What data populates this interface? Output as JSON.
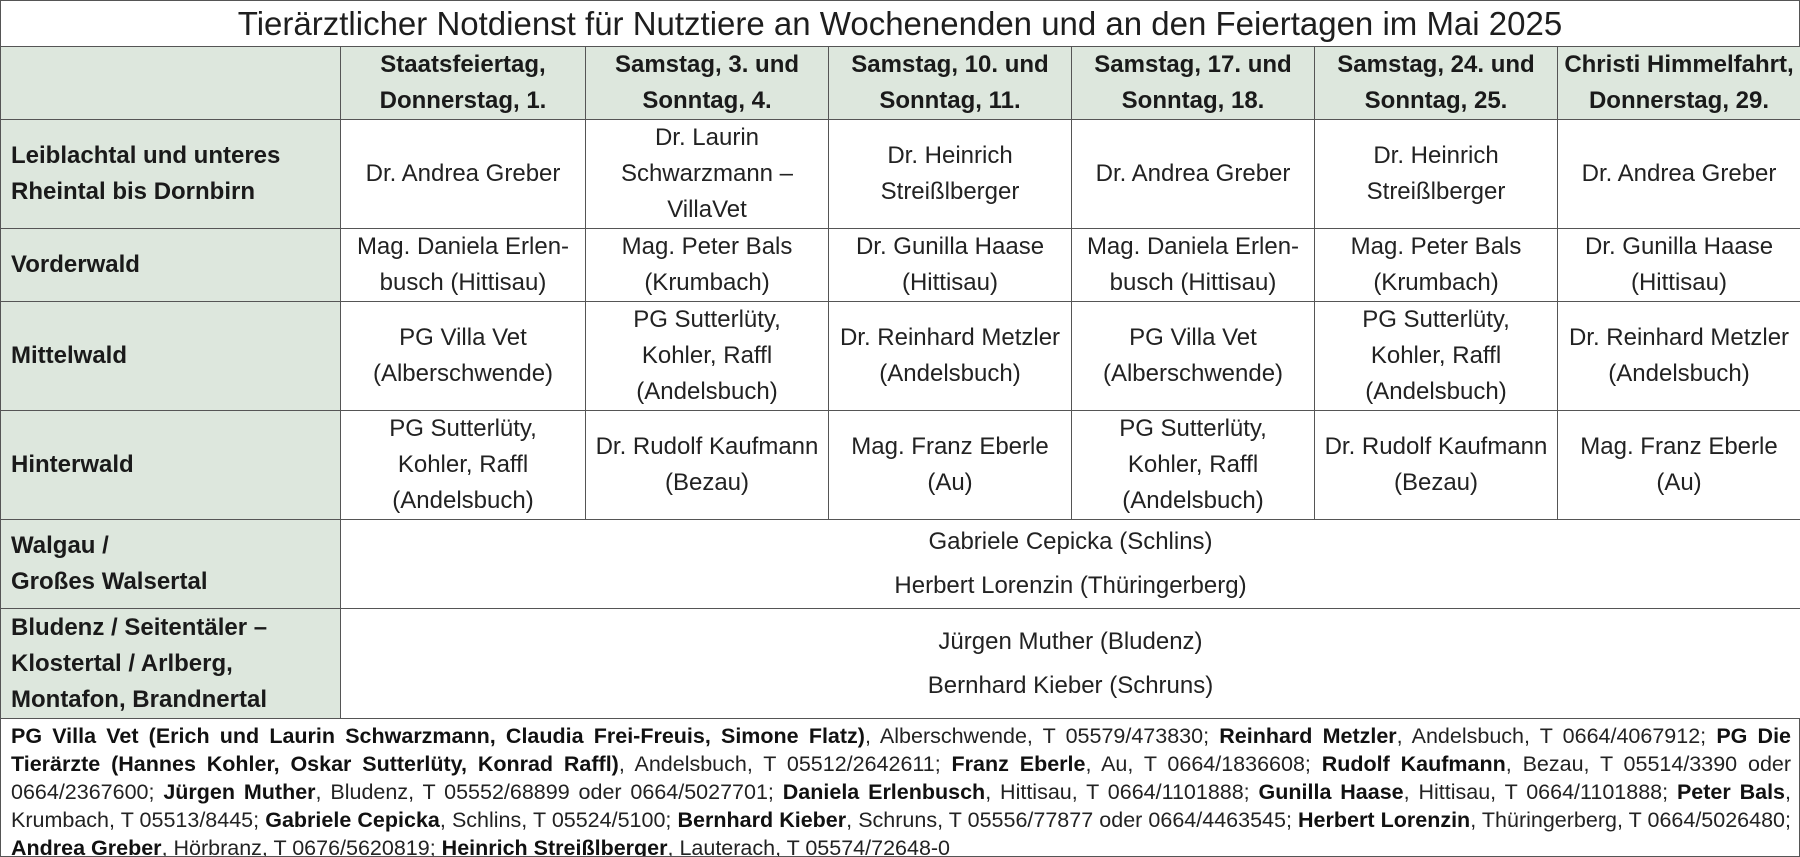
{
  "title": "Tierärztlicher Notdienst für Nutztiere an Wochenenden und an den Feiertagen im Mai 2025",
  "header": {
    "corner": "",
    "columns": [
      [
        "Staatsfeiertag,",
        "Donnerstag, 1."
      ],
      [
        "Samstag, 3. und",
        "Sonntag, 4."
      ],
      [
        "Samstag, 10. und",
        "Sonntag, 11."
      ],
      [
        "Samstag, 17. und",
        "Sonntag, 18."
      ],
      [
        "Samstag, 24. und",
        "Sonntag, 25."
      ],
      [
        "Christi Himmelfahrt,",
        "Donnerstag, 29."
      ]
    ]
  },
  "rows": [
    {
      "region": [
        "Leiblachtal und unteres",
        "Rheintal bis Dornbirn"
      ],
      "cells": [
        [
          "Dr. Andrea Greber"
        ],
        [
          "Dr. Laurin",
          "Schwarzmann –",
          "VillaVet"
        ],
        [
          "Dr. Heinrich",
          "Streißlberger"
        ],
        [
          "Dr. Andrea Greber"
        ],
        [
          "Dr. Heinrich",
          "Streißlberger"
        ],
        [
          "Dr. Andrea Greber"
        ]
      ]
    },
    {
      "region": [
        "Vorderwald"
      ],
      "cells": [
        [
          "Mag. Daniela Erlen-",
          "busch (Hittisau)"
        ],
        [
          "Mag. Peter Bals",
          "(Krumbach)"
        ],
        [
          "Dr. Gunilla Haase",
          "(Hittisau)"
        ],
        [
          "Mag. Daniela Erlen-",
          "busch (Hittisau)"
        ],
        [
          "Mag. Peter Bals",
          "(Krumbach)"
        ],
        [
          "Dr. Gunilla Haase",
          "(Hittisau)"
        ]
      ]
    },
    {
      "region": [
        "Mittelwald"
      ],
      "cells": [
        [
          "PG Villa Vet",
          "(Alberschwende)"
        ],
        [
          "PG Sutterlüty,",
          "Kohler, Raffl",
          "(Andelsbuch)"
        ],
        [
          "Dr. Reinhard Metzler",
          "(Andelsbuch)"
        ],
        [
          "PG Villa Vet",
          "(Alberschwende)"
        ],
        [
          "PG Sutterlüty,",
          "Kohler, Raffl",
          "(Andelsbuch)"
        ],
        [
          "Dr. Reinhard Metzler",
          "(Andelsbuch)"
        ]
      ]
    },
    {
      "region": [
        "Hinterwald"
      ],
      "cells": [
        [
          "PG Sutterlüty,",
          "Kohler, Raffl",
          "(Andelsbuch)"
        ],
        [
          "Dr. Rudolf Kaufmann",
          "(Bezau)"
        ],
        [
          "Mag. Franz Eberle",
          "(Au)"
        ],
        [
          "PG Sutterlüty,",
          "Kohler, Raffl",
          "(Andelsbuch)"
        ],
        [
          "Dr. Rudolf Kaufmann",
          "(Bezau)"
        ],
        [
          "Mag. Franz Eberle",
          "(Au)"
        ]
      ]
    }
  ],
  "merged_rows": [
    {
      "region": [
        "Walgau /",
        "Großes Walsertal"
      ],
      "lines": [
        "Gabriele Cepicka (Schlins)",
        "Herbert Lorenzin (Thüringerberg)"
      ]
    },
    {
      "region": [
        "Bludenz / Seitentäler –",
        "Klostertal / Arlberg,",
        "Montafon, Brandnertal"
      ],
      "lines": [
        "Jürgen Muther (Bludenz)",
        "Bernhard Kieber (Schruns)"
      ]
    }
  ],
  "contacts": [
    {
      "name": "PG Villa Vet (Erich und Laurin Schwarzmann, Claudia Frei-Freuis, Simone Flatz)",
      "details": ", Alberschwende, T 05579/473830; "
    },
    {
      "name": "Reinhard Metzler",
      "details": ", Andelsbuch, T 0664/4067912; "
    },
    {
      "name": "PG Die Tierärzte (Hannes Kohler, Oskar Sutterlüty, Konrad Raffl)",
      "details": ", Andelsbuch, T 05512/2642611; "
    },
    {
      "name": "Franz Eberle",
      "details": ", Au, T 0664/1836608; "
    },
    {
      "name": "Rudolf Kaufmann",
      "details": ", Bezau, T 05514/3390 oder 0664/2367600; "
    },
    {
      "name": "Jürgen Muther",
      "details": ", Bludenz, T 05552/68899 oder 0664/5027701; "
    },
    {
      "name": "Daniela Erlenbusch",
      "details": ", Hittisau, T 0664/1101888; "
    },
    {
      "name": "Gunilla Haase",
      "details": ", Hittisau, T 0664/1101888; "
    },
    {
      "name": "Peter Bals",
      "details": ", Krumbach, T 05513/8445; "
    },
    {
      "name": "Gabriele Cepicka",
      "details": ", Schlins, T 05524/5100; "
    },
    {
      "name": "Bernhard Kieber",
      "details": ", Schruns, T 05556/77877 oder 0664/4463545; "
    },
    {
      "name": "Herbert Lorenzin",
      "details": ", Thüringerberg, T 0664/5026480; "
    },
    {
      "name": "Andrea Greber",
      "details": ", Hörbranz, T 0676/5620819; "
    },
    {
      "name": "Heinrich Streißlberger",
      "details": ", Lauterach, T 05574/72648-0"
    }
  ]
}
